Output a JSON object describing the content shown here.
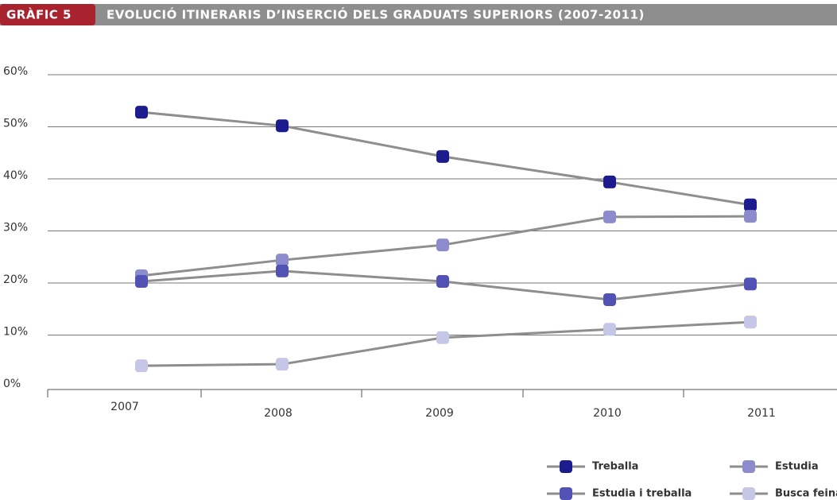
{
  "chart_data": {
    "type": "line",
    "chart_label": "GRÀFIC 5",
    "title": "EVOLUCIÓ ITINERARIS D’INSERCIÓ DELS GRADUATS SUPERIORS (2007-2011)",
    "categories": [
      "2007",
      "2008",
      "2009",
      "2010",
      "2011"
    ],
    "series": [
      {
        "name": "Treballa",
        "color": "#1c1c8e",
        "values": [
          52.8,
          50.2,
          44.3,
          39.4,
          35.0
        ]
      },
      {
        "name": "Estudia",
        "color": "#8c8ccc",
        "values": [
          21.4,
          24.4,
          27.3,
          32.7,
          32.8
        ]
      },
      {
        "name": "Estudia i treballa",
        "color": "#5252b4",
        "values": [
          20.3,
          22.3,
          20.3,
          16.8,
          19.8
        ]
      },
      {
        "name": "Busca feina",
        "color": "#c6c6e6",
        "values": [
          4.1,
          4.4,
          9.5,
          11.1,
          12.5
        ]
      }
    ],
    "line_color": "#8e8e8e",
    "ylim": [
      0,
      60
    ],
    "yticks": [
      {
        "value": 0,
        "label": "0%"
      },
      {
        "value": 10,
        "label": "10%"
      },
      {
        "value": 20,
        "label": "20%"
      },
      {
        "value": 30,
        "label": "30%"
      },
      {
        "value": 40,
        "label": "40%"
      },
      {
        "value": 50,
        "label": "50%"
      },
      {
        "value": 60,
        "label": "60%"
      }
    ],
    "grid": true
  }
}
